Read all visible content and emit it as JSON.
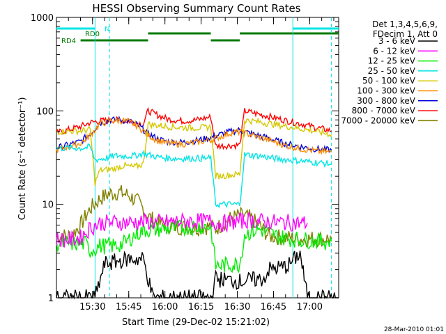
{
  "chart_data": {
    "type": "line",
    "title": "HESSI Observing Summary Count Rates",
    "xlabel": "Start Time (29-Dec-02 15:21:02)",
    "ylabel": "Count Rate (s⁻¹ detector⁻¹)",
    "yscale": "log",
    "ylim": [
      1,
      1000
    ],
    "xlim_minutes": [
      -6,
      111
    ],
    "x_ticks": [
      "15:30",
      "15:45",
      "16:00",
      "16:15",
      "16:30",
      "16:45",
      "17:00"
    ],
    "y_ticks": [
      "1",
      "10",
      "100",
      "1000"
    ],
    "legend_header": [
      "Det 1,3,4,5,6,9,",
      "FDecim 1, Att 0"
    ],
    "series": [
      {
        "name": "3 - 6 keV",
        "color": "#000000",
        "points": [
          [
            -6,
            1
          ],
          [
            10,
            1
          ],
          [
            14,
            2.3
          ],
          [
            24,
            2.6
          ],
          [
            30,
            2.6
          ],
          [
            34,
            1
          ],
          [
            58,
            1
          ],
          [
            60,
            1.6
          ],
          [
            70,
            1.5
          ],
          [
            80,
            1.6
          ],
          [
            82,
            2
          ],
          [
            90,
            2.2
          ],
          [
            95,
            3
          ],
          [
            98,
            1
          ],
          [
            111,
            1
          ]
        ]
      },
      {
        "name": "6 - 12 keV",
        "color": "#ff00ff",
        "points": [
          [
            -6,
            4.2
          ],
          [
            0,
            4.2
          ],
          [
            4,
            4.4
          ],
          [
            8,
            5.6
          ],
          [
            12,
            6.3
          ],
          [
            18,
            6.4
          ],
          [
            24,
            6.4
          ],
          [
            30,
            6.5
          ],
          [
            36,
            6.4
          ],
          [
            42,
            6.5
          ],
          [
            48,
            6.6
          ],
          [
            54,
            6.6
          ],
          [
            58,
            6.6
          ],
          [
            62,
            6.2
          ],
          [
            66,
            6.4
          ],
          [
            70,
            6.6
          ],
          [
            74,
            6.8
          ],
          [
            78,
            6.6
          ],
          [
            82,
            6.5
          ],
          [
            86,
            6.4
          ],
          [
            90,
            6.4
          ],
          [
            95,
            6.3
          ],
          [
            98,
            6.3
          ]
        ]
      },
      {
        "name": "12 - 25 keV",
        "color": "#00ee00",
        "points": [
          [
            -6,
            3.8
          ],
          [
            6,
            3.8
          ],
          [
            8,
            3.2
          ],
          [
            12,
            3.6
          ],
          [
            18,
            3.6
          ],
          [
            22,
            3.8
          ],
          [
            26,
            4.6
          ],
          [
            30,
            5.3
          ],
          [
            36,
            5.4
          ],
          [
            42,
            5.5
          ],
          [
            48,
            5.7
          ],
          [
            54,
            5.8
          ],
          [
            58,
            5.8
          ],
          [
            60,
            2.2
          ],
          [
            70,
            2.3
          ],
          [
            72,
            4.8
          ],
          [
            78,
            5.4
          ],
          [
            82,
            5
          ],
          [
            86,
            4.5
          ],
          [
            90,
            4.3
          ],
          [
            95,
            4.2
          ],
          [
            100,
            4.1
          ],
          [
            105,
            4.0
          ],
          [
            108,
            4.0
          ]
        ]
      },
      {
        "name": "25 - 50 keV",
        "color": "#00e5e5",
        "points": [
          [
            -6,
            40
          ],
          [
            4,
            40
          ],
          [
            8,
            41
          ],
          [
            10,
            30
          ],
          [
            14,
            31
          ],
          [
            18,
            33
          ],
          [
            22,
            33
          ],
          [
            26,
            33
          ],
          [
            30,
            35
          ],
          [
            36,
            32
          ],
          [
            42,
            31
          ],
          [
            48,
            31
          ],
          [
            54,
            31
          ],
          [
            58,
            31
          ],
          [
            60,
            10
          ],
          [
            70,
            10
          ],
          [
            72,
            34
          ],
          [
            78,
            33
          ],
          [
            84,
            31
          ],
          [
            90,
            30
          ],
          [
            96,
            29
          ],
          [
            102,
            28
          ],
          [
            108,
            27
          ]
        ]
      },
      {
        "name": "50 - 100 keV",
        "color": "#d4c800",
        "points": [
          [
            -6,
            60
          ],
          [
            4,
            61
          ],
          [
            8,
            63
          ],
          [
            10,
            17
          ],
          [
            12,
            23
          ],
          [
            18,
            24
          ],
          [
            22,
            26
          ],
          [
            26,
            25
          ],
          [
            30,
            27
          ],
          [
            32,
            72
          ],
          [
            40,
            68
          ],
          [
            48,
            66
          ],
          [
            54,
            66
          ],
          [
            58,
            67
          ],
          [
            60,
            20
          ],
          [
            70,
            21
          ],
          [
            72,
            80
          ],
          [
            78,
            76
          ],
          [
            84,
            72
          ],
          [
            90,
            68
          ],
          [
            96,
            64
          ],
          [
            102,
            60
          ],
          [
            108,
            56
          ]
        ]
      },
      {
        "name": "100 - 300 keV",
        "color": "#ff8c00",
        "points": [
          [
            -6,
            38
          ],
          [
            4,
            45
          ],
          [
            8,
            55
          ],
          [
            12,
            72
          ],
          [
            16,
            78
          ],
          [
            20,
            79
          ],
          [
            24,
            77
          ],
          [
            28,
            68
          ],
          [
            32,
            55
          ],
          [
            36,
            48
          ],
          [
            40,
            45
          ],
          [
            46,
            44
          ],
          [
            52,
            46
          ],
          [
            58,
            49
          ],
          [
            62,
            53
          ],
          [
            66,
            58
          ],
          [
            70,
            60
          ],
          [
            74,
            56
          ],
          [
            78,
            52
          ],
          [
            82,
            49
          ],
          [
            86,
            45
          ],
          [
            90,
            42
          ],
          [
            96,
            39
          ],
          [
            102,
            37
          ],
          [
            108,
            36
          ]
        ]
      },
      {
        "name": "300 - 800 keV",
        "color": "#0000dd",
        "points": [
          [
            -6,
            40
          ],
          [
            4,
            47
          ],
          [
            8,
            57
          ],
          [
            12,
            74
          ],
          [
            16,
            80
          ],
          [
            20,
            80
          ],
          [
            24,
            78
          ],
          [
            28,
            70
          ],
          [
            32,
            57
          ],
          [
            36,
            50
          ],
          [
            40,
            47
          ],
          [
            46,
            46
          ],
          [
            52,
            48
          ],
          [
            58,
            52
          ],
          [
            62,
            56
          ],
          [
            66,
            60
          ],
          [
            70,
            62
          ],
          [
            74,
            58
          ],
          [
            78,
            54
          ],
          [
            82,
            51
          ],
          [
            86,
            47
          ],
          [
            90,
            44
          ],
          [
            96,
            41
          ],
          [
            102,
            39
          ],
          [
            108,
            38
          ]
        ]
      },
      {
        "name": "800 - 7000 keV",
        "color": "#ff0000",
        "points": [
          [
            -6,
            58
          ],
          [
            4,
            68
          ],
          [
            8,
            75
          ],
          [
            12,
            78
          ],
          [
            18,
            80
          ],
          [
            24,
            78
          ],
          [
            30,
            72
          ],
          [
            32,
            100
          ],
          [
            36,
            90
          ],
          [
            40,
            82
          ],
          [
            46,
            78
          ],
          [
            52,
            80
          ],
          [
            58,
            86
          ],
          [
            60,
            42
          ],
          [
            70,
            43
          ],
          [
            72,
            100
          ],
          [
            78,
            92
          ],
          [
            84,
            85
          ],
          [
            90,
            78
          ],
          [
            96,
            72
          ],
          [
            102,
            66
          ],
          [
            108,
            61
          ]
        ]
      },
      {
        "name": "7000 - 20000 keV",
        "color": "#808000",
        "points": [
          [
            -6,
            4.6
          ],
          [
            0,
            4.6
          ],
          [
            4,
            6
          ],
          [
            8,
            9
          ],
          [
            12,
            11.5
          ],
          [
            16,
            13
          ],
          [
            20,
            13.5
          ],
          [
            24,
            12.5
          ],
          [
            28,
            10.5
          ],
          [
            32,
            7.5
          ],
          [
            36,
            6.2
          ],
          [
            42,
            5.8
          ],
          [
            48,
            5.7
          ],
          [
            52,
            5.6
          ],
          [
            58,
            5.8
          ],
          [
            60,
            5.5
          ],
          [
            66,
            7
          ],
          [
            70,
            7.6
          ],
          [
            74,
            7.2
          ],
          [
            78,
            6
          ],
          [
            82,
            4.6
          ],
          [
            88,
            4.4
          ],
          [
            94,
            4.3
          ],
          [
            100,
            4.3
          ],
          [
            108,
            4.3
          ]
        ]
      }
    ],
    "flag_bars": [
      {
        "label": "N",
        "color": "#00e5e5",
        "label_color": "#00e5e5",
        "segments": [
          [
            -6,
            10
          ],
          [
            92,
            111
          ]
        ]
      },
      {
        "label": "RD0",
        "color": "#007a00",
        "label_color": "#007a00",
        "segments": [
          [
            32,
            58
          ],
          [
            70,
            111
          ]
        ]
      },
      {
        "label": "RD4",
        "color": "#007a00",
        "label_color": "#007a00",
        "segments": [
          [
            4,
            32
          ],
          [
            58,
            70
          ]
        ]
      }
    ],
    "vertical_lines": [
      {
        "x": 10,
        "style": "solid"
      },
      {
        "x": 92,
        "style": "solid"
      },
      {
        "x": 16,
        "style": "dashed"
      },
      {
        "x": 108,
        "style": "dashed"
      }
    ],
    "footer_timestamp": "28-Mar-2010 01:01"
  }
}
